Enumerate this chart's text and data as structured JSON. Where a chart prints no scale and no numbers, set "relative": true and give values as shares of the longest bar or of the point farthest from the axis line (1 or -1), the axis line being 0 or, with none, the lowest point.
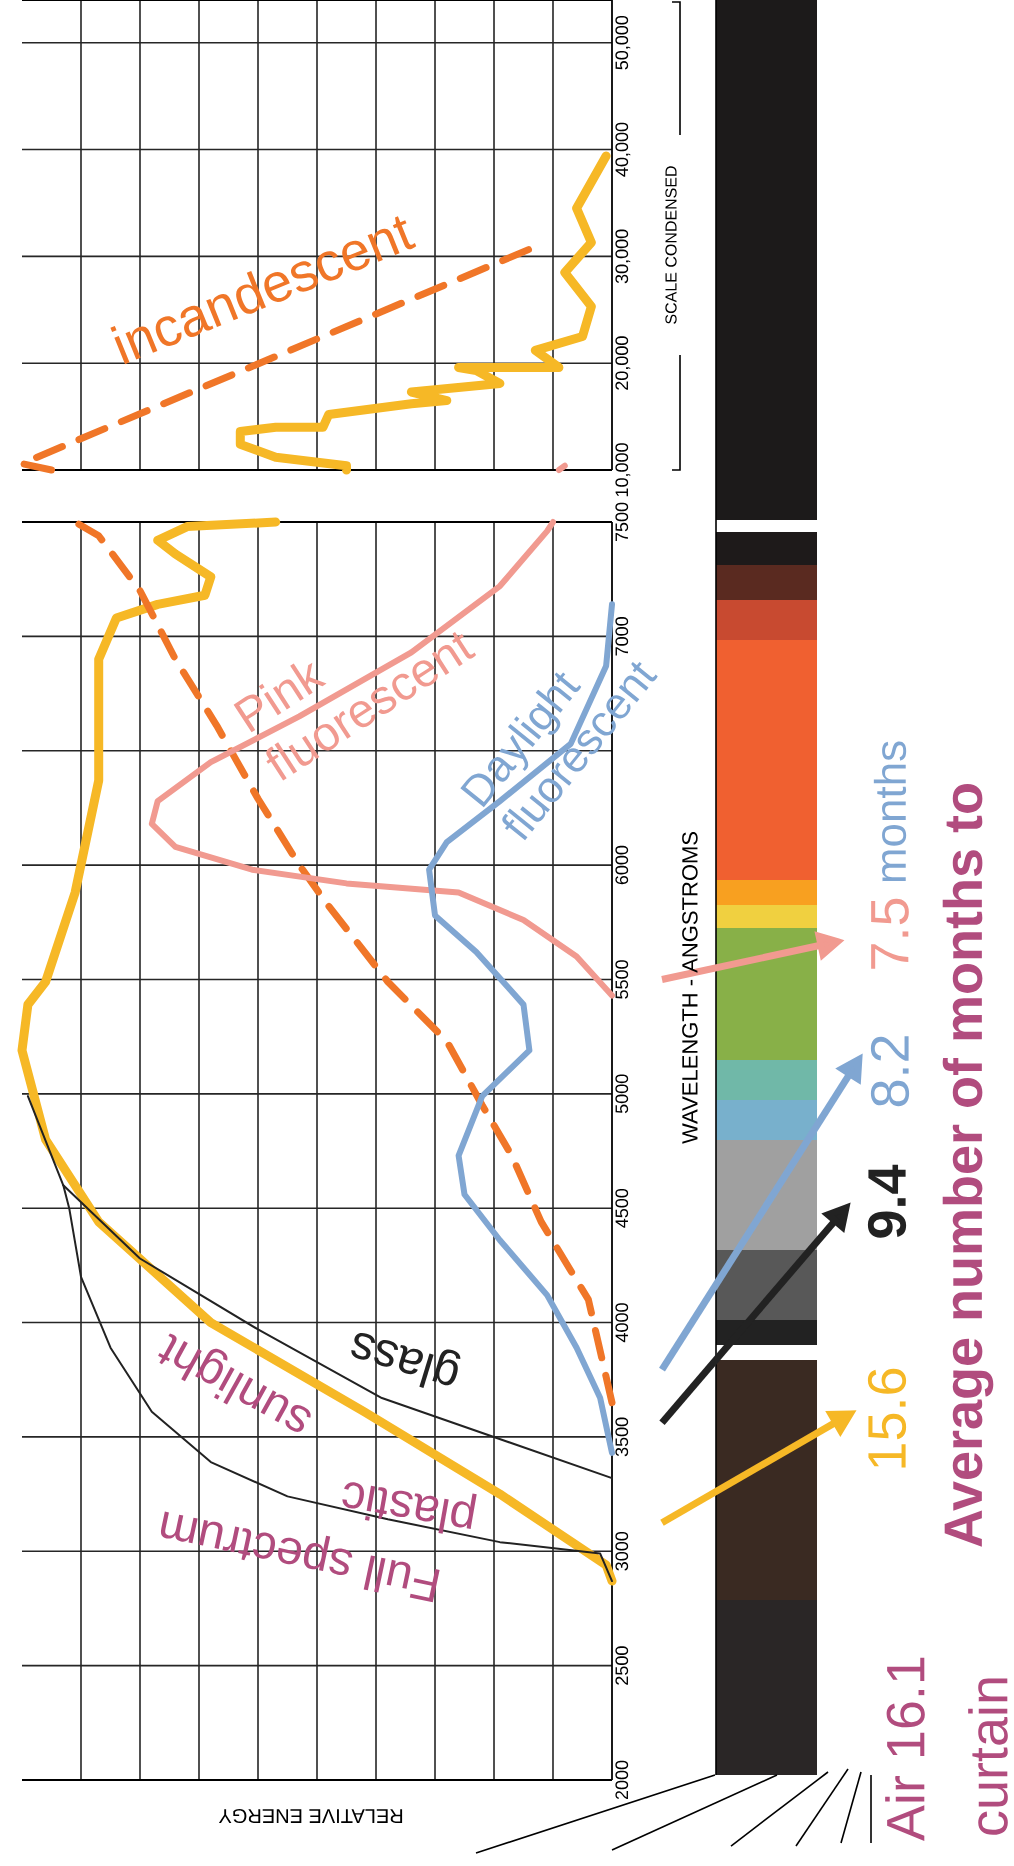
{
  "chart_data": [
    {
      "type": "line",
      "orientation": "horizontal",
      "relative": true,
      "ylim": [
        10000,
        54000
      ],
      "yticks": [
        {
          "value": 10000,
          "label": "10,000"
        },
        {
          "value": 20000,
          "label": "20,000"
        },
        {
          "value": 30000,
          "label": "30,000"
        },
        {
          "value": 40000,
          "label": "40,000"
        },
        {
          "value": 50000,
          "label": "50,000"
        }
      ],
      "grid": true,
      "tick_labels": "y",
      "series": [
        {
          "color": "#f6b826",
          "x": [
            10000,
            10400,
            11200,
            12400,
            13600,
            14000,
            14000,
            15200,
            16200,
            16500,
            17300,
            18100,
            19300,
            19600,
            19600,
            21200,
            22500,
            25300,
            28500,
            31300,
            34500,
            39400
          ],
          "values": [
            -0.45,
            -0.45,
            -0.57,
            -0.63,
            -0.63,
            -0.57,
            -0.49,
            -0.48,
            -0.34,
            -0.28,
            -0.34,
            -0.19,
            -0.23,
            -0.26,
            -0.09,
            -0.13,
            -0.05,
            -0.035,
            -0.08,
            -0.035,
            -0.06,
            -0.01
          ]
        },
        {
          "name": "incandescent",
          "color": "#f07628",
          "line_style": "dashed",
          "x": [
            10000,
            10600,
            30900
          ],
          "values": [
            -0.95,
            -1.0,
            -0.13
          ]
        },
        {
          "color": "#f19a90",
          "x": [
            10000,
            10400
          ],
          "values": [
            -0.09,
            -0.08
          ]
        }
      ],
      "annotations": [
        "SCALE CONDENSED"
      ]
    },
    {
      "type": "line",
      "orientation": "horizontal",
      "relative": true,
      "xlabel": "RELATIVE ENERGY",
      "ylabel": "WAVELENGTH - ANGSTROMS",
      "ylim": [
        2000,
        7500
      ],
      "yticks": [
        2000,
        2500,
        3000,
        3500,
        4000,
        4500,
        5000,
        5500,
        6000,
        {
          "value": 6500,
          "label": null
        },
        7000,
        7500
      ],
      "grid": true,
      "tick_labels": "y",
      "series": [
        {
          "name": "sunlight",
          "color": "#f6b826",
          "x": [
            2870,
            2940,
            3250,
            3610,
            4000,
            4440,
            4800,
            5190,
            5390,
            5490,
            5880,
            6370,
            6770,
            6900,
            7080,
            7140,
            7180,
            7260,
            7360,
            7420,
            7480,
            7500
          ],
          "values": [
            0,
            -0.01,
            -0.19,
            -0.42,
            -0.68,
            -0.87,
            -0.96,
            -1.0,
            -0.99,
            -0.96,
            -0.91,
            -0.87,
            -0.87,
            -0.87,
            -0.84,
            -0.77,
            -0.69,
            -0.68,
            -0.74,
            -0.77,
            -0.72,
            -0.57
          ]
        },
        {
          "color": "#f07628",
          "line_style": "dashed",
          "x": [
            3650,
            4100,
            4440,
            4730,
            4950,
            5230,
            5490,
            5820,
            6000,
            6290,
            6610,
            6900,
            7200,
            7440,
            7500
          ],
          "values": [
            0,
            -0.04,
            -0.12,
            -0.17,
            -0.22,
            -0.28,
            -0.38,
            -0.48,
            -0.53,
            -0.6,
            -0.67,
            -0.74,
            -0.8,
            -0.87,
            -0.91
          ]
        },
        {
          "name": "Pink fluorescent",
          "color": "#f19a90",
          "x": [
            7500,
            7460,
            7220,
            6930,
            6650,
            6450,
            6280,
            6180,
            6080,
            5980,
            5920,
            5880,
            5760,
            5600,
            5430
          ],
          "values": [
            -0.1,
            -0.11,
            -0.19,
            -0.34,
            -0.53,
            -0.68,
            -0.77,
            -0.78,
            -0.74,
            -0.61,
            -0.45,
            -0.26,
            -0.15,
            -0.06,
            0
          ]
        },
        {
          "name": "Daylight fluorescent",
          "color": "#80a6d2",
          "x": [
            7140,
            6870,
            6530,
            6280,
            6100,
            5980,
            5780,
            5620,
            5390,
            5190,
            4990,
            4730,
            4560,
            4360,
            4120,
            3890,
            3670,
            3430
          ],
          "values": [
            0,
            -0.01,
            -0.07,
            -0.19,
            -0.28,
            -0.31,
            -0.3,
            -0.23,
            -0.15,
            -0.14,
            -0.22,
            -0.26,
            -0.25,
            -0.19,
            -0.11,
            -0.06,
            -0.02,
            0
          ]
        },
        {
          "name": "glass",
          "color": "#222222",
          "x": [
            4990,
            4600,
            4280,
            3970,
            3670,
            3320
          ],
          "values": [
            -0.99,
            -0.93,
            -0.8,
            -0.6,
            -0.39,
            0
          ]
        },
        {
          "color": "#222222",
          "x": [
            4600,
            4500,
            4200,
            3890,
            3610,
            3390,
            3240,
            3140,
            3040,
            2990,
            2870
          ],
          "values": [
            -0.93,
            -0.92,
            -0.9,
            -0.85,
            -0.78,
            -0.68,
            -0.55,
            -0.38,
            -0.19,
            -0.02,
            0
          ]
        }
      ],
      "annotations": [
        "Full spectrum",
        "plastic",
        "Air 16.1",
        "15.6",
        "9.4",
        "8.2",
        "7.5",
        "months",
        "Average number of months to",
        "curtain"
      ]
    }
  ]
}
